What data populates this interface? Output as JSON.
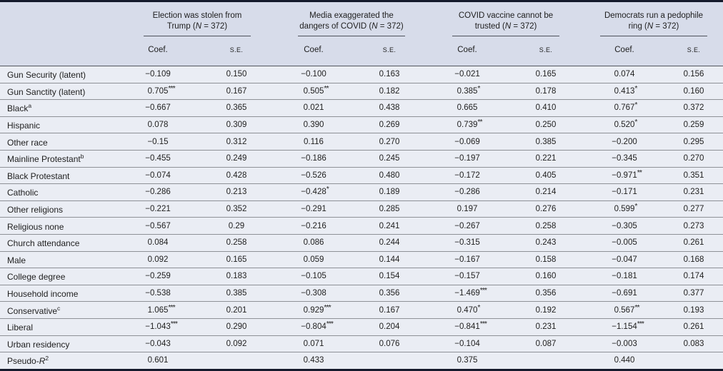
{
  "table": {
    "colors": {
      "header_bg": "#d7dcea",
      "body_row_bg": "#eaedf4",
      "outer_rule": "#151a2c",
      "row_separator": "#8e9197",
      "text": "#1e1e1e"
    },
    "col_labels": {
      "coef": "Coef.",
      "se": "S.E."
    },
    "groups": [
      {
        "line1": "Election was stolen from",
        "line2_pre": "Trump (",
        "n": "N",
        "line2_post": " = 372)"
      },
      {
        "line1": "Media exaggerated the",
        "line2_pre": "dangers of COVID (",
        "n": "N",
        "line2_post": " = 372)"
      },
      {
        "line1": "COVID vaccine cannot be",
        "line2_pre": "trusted (",
        "n": "N",
        "line2_post": " = 372)"
      },
      {
        "line1": "Democrats run a pedophile",
        "line2_pre": "ring (",
        "n": "N",
        "line2_post": " = 372)"
      }
    ],
    "rows": [
      {
        "label": "Gun Security (latent)",
        "values": [
          "−0.109",
          "0.150",
          "−0.100",
          "0.163",
          "−0.021",
          "0.165",
          "0.074",
          "0.156"
        ]
      },
      {
        "label": "Gun Sanctity (latent)",
        "values": [
          "0.705***",
          "0.167",
          "0.505**",
          "0.182",
          "0.385*",
          "0.178",
          "0.413*",
          "0.160"
        ]
      },
      {
        "label": "Black",
        "sup": "a",
        "values": [
          "−0.667",
          "0.365",
          "0.021",
          "0.438",
          "0.665",
          "0.410",
          "0.767*",
          "0.372"
        ]
      },
      {
        "label": "Hispanic",
        "values": [
          "0.078",
          "0.309",
          "0.390",
          "0.269",
          "0.739**",
          "0.250",
          "0.520*",
          "0.259"
        ]
      },
      {
        "label": "Other race",
        "values": [
          "−0.15",
          "0.312",
          "0.116",
          "0.270",
          "−0.069",
          "0.385",
          "−0.200",
          "0.295"
        ]
      },
      {
        "label": "Mainline Protestant",
        "sup": "b",
        "values": [
          "−0.455",
          "0.249",
          "−0.186",
          "0.245",
          "−0.197",
          "0.221",
          "−0.345",
          "0.270"
        ]
      },
      {
        "label": "Black Protestant",
        "values": [
          "−0.074",
          "0.428",
          "−0.526",
          "0.480",
          "−0.172",
          "0.405",
          "−0.971**",
          "0.351"
        ]
      },
      {
        "label": "Catholic",
        "values": [
          "−0.286",
          "0.213",
          "−0.428*",
          "0.189",
          "−0.286",
          "0.214",
          "−0.171",
          "0.231"
        ]
      },
      {
        "label": "Other religions",
        "values": [
          "−0.221",
          "0.352",
          "−0.291",
          "0.285",
          "0.197",
          "0.276",
          "0.599*",
          "0.277"
        ]
      },
      {
        "label": "Religious none",
        "values": [
          "−0.567",
          "0.29",
          "−0.216",
          "0.241",
          "−0.267",
          "0.258",
          "−0.305",
          "0.273"
        ]
      },
      {
        "label": "Church attendance",
        "values": [
          "0.084",
          "0.258",
          "0.086",
          "0.244",
          "−0.315",
          "0.243",
          "−0.005",
          "0.261"
        ]
      },
      {
        "label": "Male",
        "values": [
          "0.092",
          "0.165",
          "0.059",
          "0.144",
          "−0.167",
          "0.158",
          "−0.047",
          "0.168"
        ]
      },
      {
        "label": "College degree",
        "values": [
          "−0.259",
          "0.183",
          "−0.105",
          "0.154",
          "−0.157",
          "0.160",
          "−0.181",
          "0.174"
        ]
      },
      {
        "label": "Household income",
        "values": [
          "−0.538",
          "0.385",
          "−0.308",
          "0.356",
          "−1.469***",
          "0.356",
          "−0.691",
          "0.377"
        ]
      },
      {
        "label": "Conservative",
        "sup": "c",
        "values": [
          "1.065***",
          "0.201",
          "0.929***",
          "0.167",
          "0.470*",
          "0.192",
          "0.567**",
          "0.193"
        ]
      },
      {
        "label": "Liberal",
        "values": [
          "−1.043***",
          "0.290",
          "−0.804***",
          "0.204",
          "−0.841***",
          "0.231",
          "−1.154***",
          "0.261"
        ]
      },
      {
        "label": "Urban residency",
        "values": [
          "−0.043",
          "0.092",
          "0.071",
          "0.076",
          "−0.104",
          "0.087",
          "−0.003",
          "0.083"
        ]
      },
      {
        "label": "Pseudo-",
        "label_italic": "R",
        "sup": "2",
        "values": [
          "0.601",
          "",
          "0.433",
          "",
          "0.375",
          "",
          "0.440",
          ""
        ]
      }
    ]
  }
}
